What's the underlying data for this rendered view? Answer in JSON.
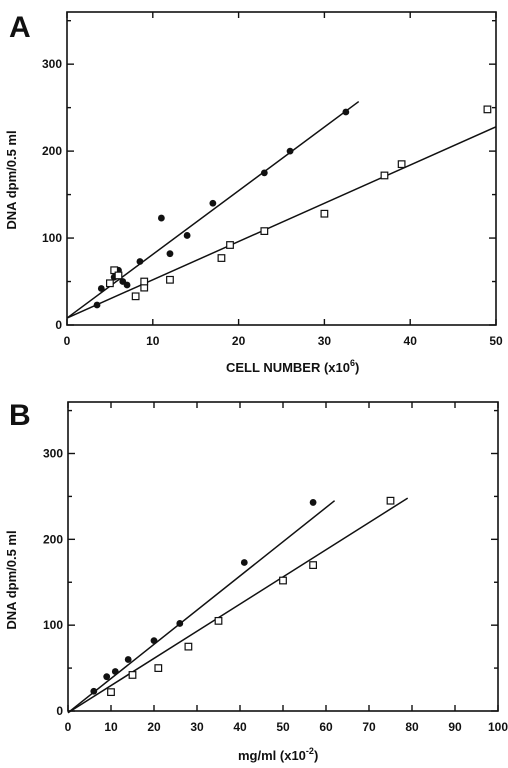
{
  "chart_data": [
    {
      "panel": "A",
      "type": "scatter",
      "xlabel": "CELL NUMBER",
      "xlabel_unit": "(x10",
      "xlabel_exp": "6",
      "xlabel_close": ")",
      "ylabel": "DNA dpm/0.5 ml",
      "xlim": [
        0,
        50
      ],
      "ylim": [
        0,
        360
      ],
      "xticks": [
        0,
        10,
        20,
        30,
        40,
        50
      ],
      "yticks": [
        0,
        100,
        200,
        300
      ],
      "grid": false,
      "series": [
        {
          "marker": "filled-circle",
          "points": [
            [
              3.5,
              23
            ],
            [
              4,
              42
            ],
            [
              5.5,
              55
            ],
            [
              6,
              63
            ],
            [
              6.5,
              50
            ],
            [
              7,
              46
            ],
            [
              8.5,
              73
            ],
            [
              11,
              123
            ],
            [
              12,
              82
            ],
            [
              14,
              103
            ],
            [
              17,
              140
            ],
            [
              23,
              175
            ],
            [
              26,
              200
            ],
            [
              32.5,
              245
            ]
          ],
          "fit_line": [
            [
              0,
              8
            ],
            [
              34,
              257
            ]
          ]
        },
        {
          "marker": "open-square",
          "points": [
            [
              5,
              48
            ],
            [
              5.5,
              63
            ],
            [
              6,
              57
            ],
            [
              8,
              33
            ],
            [
              9,
              43
            ],
            [
              9,
              50
            ],
            [
              12,
              52
            ],
            [
              18,
              77
            ],
            [
              19,
              92
            ],
            [
              23,
              108
            ],
            [
              30,
              128
            ],
            [
              37,
              172
            ],
            [
              39,
              185
            ],
            [
              49,
              248
            ]
          ],
          "fit_line": [
            [
              0,
              8
            ],
            [
              50,
              228
            ]
          ]
        }
      ]
    },
    {
      "panel": "B",
      "type": "scatter",
      "xlabel": "mg/ml",
      "xlabel_unit": "(x10",
      "xlabel_exp": "-2",
      "xlabel_close": ")",
      "ylabel": "DNA dpm/0.5 ml",
      "xlim": [
        0,
        100
      ],
      "ylim": [
        0,
        360
      ],
      "xticks": [
        0,
        10,
        20,
        30,
        40,
        50,
        60,
        70,
        80,
        90,
        100
      ],
      "yticks": [
        0,
        100,
        200,
        300
      ],
      "grid": false,
      "series": [
        {
          "marker": "filled-circle",
          "points": [
            [
              6,
              23
            ],
            [
              9,
              40
            ],
            [
              11,
              46
            ],
            [
              14,
              60
            ],
            [
              20,
              82
            ],
            [
              26,
              102
            ],
            [
              41,
              173
            ],
            [
              57,
              243
            ]
          ],
          "fit_line": [
            [
              0,
              -2
            ],
            [
              62,
              245
            ]
          ]
        },
        {
          "marker": "open-square",
          "points": [
            [
              10,
              22
            ],
            [
              15,
              42
            ],
            [
              21,
              50
            ],
            [
              28,
              75
            ],
            [
              35,
              105
            ],
            [
              50,
              152
            ],
            [
              57,
              170
            ],
            [
              75,
              245
            ]
          ],
          "fit_line": [
            [
              0,
              -2
            ],
            [
              79,
              248
            ]
          ]
        }
      ]
    }
  ]
}
